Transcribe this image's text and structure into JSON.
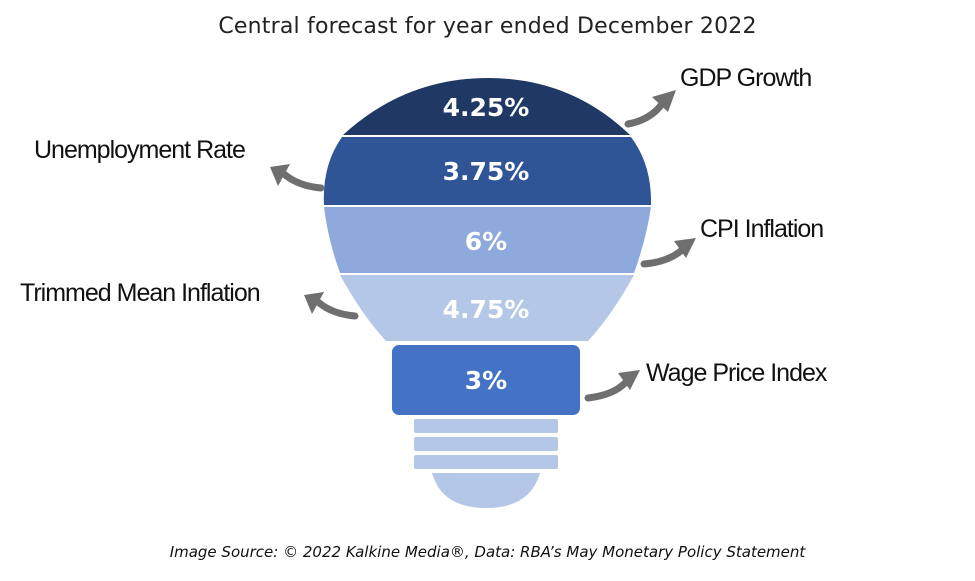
{
  "title": "Central forecast for year ended December 2022",
  "bands": [
    {
      "value": "4.25%",
      "label": "GDP Growth",
      "color": "#1f3864"
    },
    {
      "value": "3.75%",
      "label": "Unemployment Rate",
      "color": "#2f5597"
    },
    {
      "value": "6%",
      "label": "CPI Inflation",
      "color": "#8ea9db"
    },
    {
      "value": "4.75%",
      "label": "Trimmed Mean Inflation",
      "color": "#b4c7e7"
    },
    {
      "value": "3%",
      "label": "Wage Price Index",
      "color": "#4472c4"
    }
  ],
  "base_color": "#b4c7e7",
  "arrow_color": "#6f6f6f",
  "source": "Image Source: © 2022 Kalkine Media®, Data: RBA’s May Monetary Policy Statement"
}
